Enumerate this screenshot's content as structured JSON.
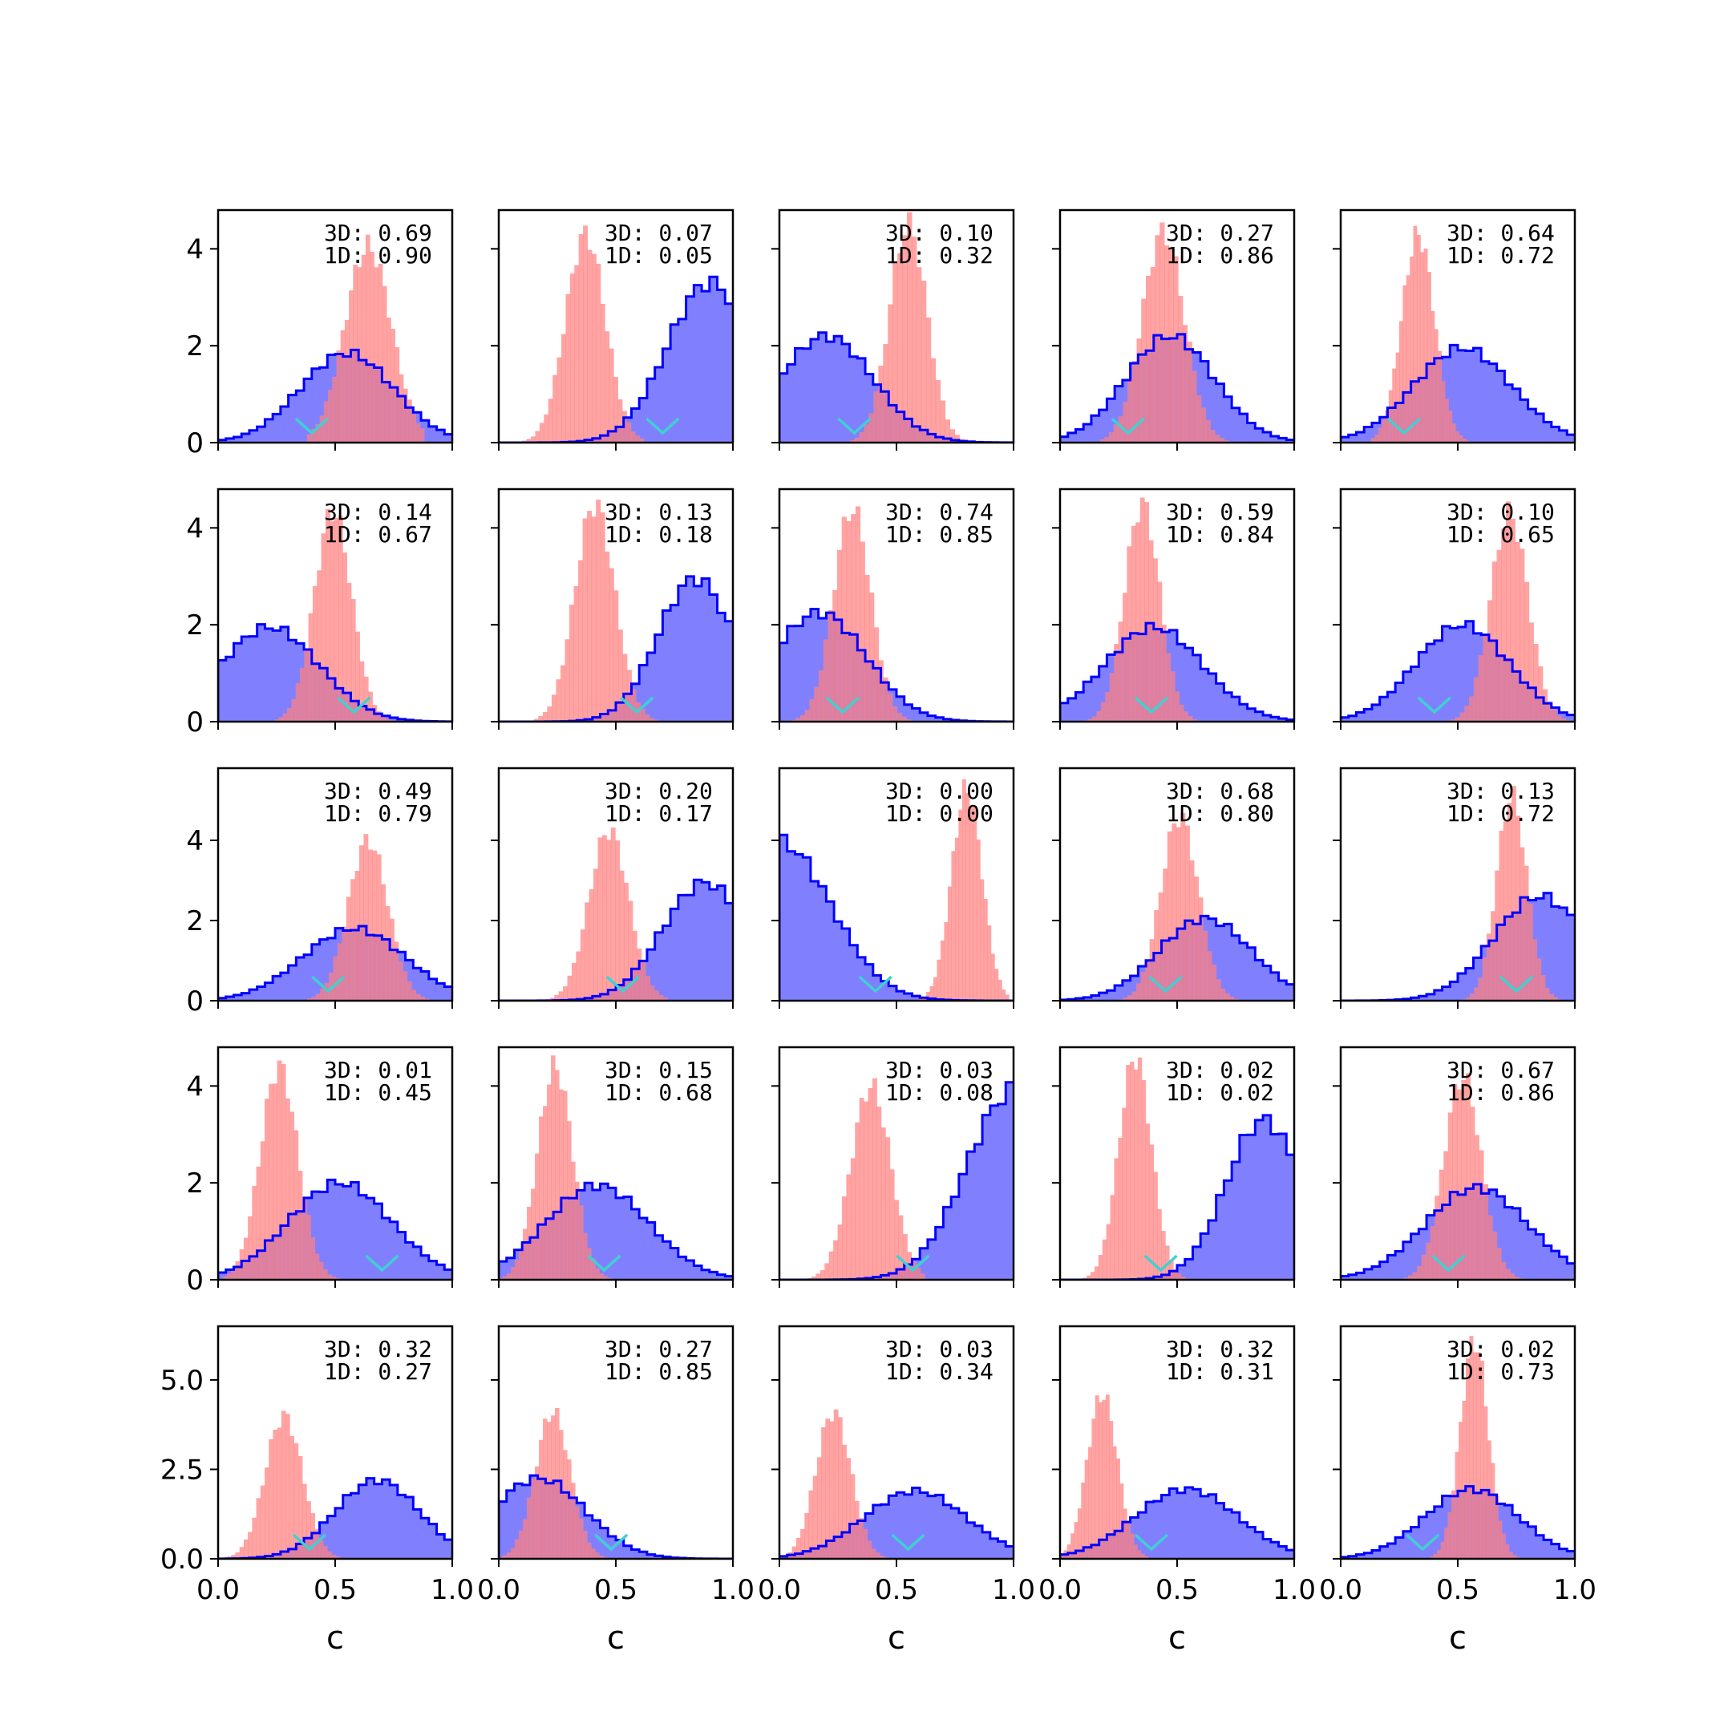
{
  "figure": {
    "xlabel": "c",
    "xticks": [
      "0.0",
      "0.5",
      "1.0"
    ],
    "row_yticks": [
      [
        {
          "v": 0,
          "t": "0"
        },
        {
          "v": 2,
          "t": "2"
        },
        {
          "v": 4,
          "t": "4"
        }
      ],
      [
        {
          "v": 0,
          "t": "0"
        },
        {
          "v": 2,
          "t": "2"
        },
        {
          "v": 4,
          "t": "4"
        }
      ],
      [
        {
          "v": 0,
          "t": "0"
        },
        {
          "v": 2,
          "t": "2"
        },
        {
          "v": 4,
          "t": "4"
        }
      ],
      [
        {
          "v": 0,
          "t": "0"
        },
        {
          "v": 2,
          "t": "2"
        },
        {
          "v": 4,
          "t": "4"
        }
      ],
      [
        {
          "v": 0,
          "t": "0.0"
        },
        {
          "v": 2.5,
          "t": "2.5"
        },
        {
          "v": 5,
          "t": "5.0"
        }
      ]
    ],
    "row_ylim": [
      [
        0,
        4.8
      ],
      [
        0,
        4.8
      ],
      [
        0,
        5.8
      ],
      [
        0,
        4.8
      ],
      [
        0,
        6.5
      ]
    ],
    "colors": {
      "prior": "#0000ff",
      "prior_fill": "#8080ff",
      "posterior": "#ff8080",
      "marker": "#40d0d0"
    }
  },
  "chart_data": [
    {
      "type": "histogram",
      "row": 0,
      "col": 0,
      "annot_3d": "3D: 0.69",
      "annot_1d": "1D: 0.90",
      "blue": {
        "mean": 0.55,
        "sd": 0.2,
        "peak": 1.85
      },
      "red": {
        "mean": 0.64,
        "sd": 0.1,
        "peak": 4.05,
        "lo": 0.38,
        "hi": 0.88
      },
      "marker_x": 0.4
    },
    {
      "type": "histogram",
      "row": 0,
      "col": 1,
      "annot_3d": "3D: 0.07",
      "annot_1d": "1D: 0.05",
      "blue": {
        "mean": 0.9,
        "sd": 0.18,
        "peak": 3.3
      },
      "red": {
        "mean": 0.37,
        "sd": 0.085,
        "peak": 4.3,
        "lo": 0.1,
        "hi": 0.62
      },
      "marker_x": 0.7
    },
    {
      "type": "histogram",
      "row": 0,
      "col": 2,
      "annot_3d": "3D: 0.10",
      "annot_1d": "1D: 0.32",
      "blue": {
        "mean": 0.2,
        "sd": 0.2,
        "peak": 2.2
      },
      "red": {
        "mean": 0.55,
        "sd": 0.08,
        "peak": 4.5,
        "lo": 0.28,
        "hi": 0.85
      },
      "marker_x": 0.32
    },
    {
      "type": "histogram",
      "row": 0,
      "col": 3,
      "annot_3d": "3D: 0.27",
      "annot_1d": "1D: 0.86",
      "blue": {
        "mean": 0.47,
        "sd": 0.19,
        "peak": 2.2
      },
      "red": {
        "mean": 0.44,
        "sd": 0.09,
        "peak": 4.35,
        "lo": 0.17,
        "hi": 0.72
      },
      "marker_x": 0.29
    },
    {
      "type": "histogram",
      "row": 0,
      "col": 4,
      "annot_3d": "3D: 0.64",
      "annot_1d": "1D: 0.72",
      "blue": {
        "mean": 0.52,
        "sd": 0.21,
        "peak": 1.95
      },
      "red": {
        "mean": 0.33,
        "sd": 0.07,
        "peak": 4.3,
        "lo": 0.13,
        "hi": 0.55
      },
      "marker_x": 0.27
    },
    {
      "type": "histogram",
      "row": 1,
      "col": 0,
      "annot_3d": "3D: 0.14",
      "annot_1d": "1D: 0.67",
      "blue": {
        "mean": 0.22,
        "sd": 0.21,
        "peak": 1.95
      },
      "red": {
        "mean": 0.49,
        "sd": 0.08,
        "peak": 4.35,
        "lo": 0.24,
        "hi": 0.75
      },
      "marker_x": 0.58
    },
    {
      "type": "histogram",
      "row": 1,
      "col": 1,
      "annot_3d": "3D: 0.13",
      "annot_1d": "1D: 0.18",
      "blue": {
        "mean": 0.84,
        "sd": 0.16,
        "peak": 2.95
      },
      "red": {
        "mean": 0.41,
        "sd": 0.085,
        "peak": 4.5,
        "lo": 0.15,
        "hi": 0.68
      },
      "marker_x": 0.59
    },
    {
      "type": "histogram",
      "row": 1,
      "col": 2,
      "annot_3d": "3D: 0.74",
      "annot_1d": "1D: 0.85",
      "blue": {
        "mean": 0.17,
        "sd": 0.2,
        "peak": 2.25
      },
      "red": {
        "mean": 0.31,
        "sd": 0.08,
        "peak": 4.4,
        "lo": 0.05,
        "hi": 0.6
      },
      "marker_x": 0.27
    },
    {
      "type": "histogram",
      "row": 1,
      "col": 3,
      "annot_3d": "3D: 0.59",
      "annot_1d": "1D: 0.84",
      "blue": {
        "mean": 0.4,
        "sd": 0.21,
        "peak": 1.95
      },
      "red": {
        "mean": 0.35,
        "sd": 0.075,
        "peak": 4.5,
        "lo": 0.1,
        "hi": 0.62
      },
      "marker_x": 0.39
    },
    {
      "type": "histogram",
      "row": 1,
      "col": 4,
      "annot_3d": "3D: 0.10",
      "annot_1d": "1D: 0.65",
      "blue": {
        "mean": 0.52,
        "sd": 0.2,
        "peak": 2.0
      },
      "red": {
        "mean": 0.72,
        "sd": 0.08,
        "peak": 4.3,
        "lo": 0.45,
        "hi": 1.0
      },
      "marker_x": 0.4
    },
    {
      "type": "histogram",
      "row": 2,
      "col": 0,
      "annot_3d": "3D: 0.49",
      "annot_1d": "1D: 0.79",
      "blue": {
        "mean": 0.58,
        "sd": 0.22,
        "peak": 1.8
      },
      "red": {
        "mean": 0.64,
        "sd": 0.085,
        "peak": 4.0,
        "lo": 0.38,
        "hi": 0.9
      },
      "marker_x": 0.47
    },
    {
      "type": "histogram",
      "row": 2,
      "col": 1,
      "annot_3d": "3D: 0.20",
      "annot_1d": "1D: 0.17",
      "blue": {
        "mean": 0.88,
        "sd": 0.18,
        "peak": 2.95
      },
      "red": {
        "mean": 0.47,
        "sd": 0.085,
        "peak": 4.25,
        "lo": 0.2,
        "hi": 0.72
      },
      "marker_x": 0.53
    },
    {
      "type": "histogram",
      "row": 2,
      "col": 2,
      "annot_3d": "3D: 0.00",
      "annot_1d": "1D: 0.00",
      "blue": {
        "mean": 0.0,
        "sd": 0.22,
        "peak": 3.95
      },
      "red": {
        "mean": 0.8,
        "sd": 0.065,
        "peak": 5.3,
        "lo": 0.55,
        "hi": 0.98
      },
      "marker_x": 0.41
    },
    {
      "type": "histogram",
      "row": 2,
      "col": 3,
      "annot_3d": "3D: 0.68",
      "annot_1d": "1D: 0.80",
      "blue": {
        "mean": 0.62,
        "sd": 0.2,
        "peak": 2.05
      },
      "red": {
        "mean": 0.51,
        "sd": 0.08,
        "peak": 4.6,
        "lo": 0.25,
        "hi": 0.78
      },
      "marker_x": 0.45
    },
    {
      "type": "histogram",
      "row": 2,
      "col": 4,
      "annot_3d": "3D: 0.13",
      "annot_1d": "1D: 0.72",
      "blue": {
        "mean": 0.85,
        "sd": 0.2,
        "peak": 2.6
      },
      "red": {
        "mean": 0.73,
        "sd": 0.065,
        "peak": 5.1,
        "lo": 0.48,
        "hi": 0.98
      },
      "marker_x": 0.75
    },
    {
      "type": "histogram",
      "row": 3,
      "col": 0,
      "annot_3d": "3D: 0.01",
      "annot_1d": "1D: 0.45",
      "blue": {
        "mean": 0.52,
        "sd": 0.22,
        "peak": 2.0
      },
      "red": {
        "mean": 0.26,
        "sd": 0.08,
        "peak": 4.4,
        "lo": 0.02,
        "hi": 0.52
      },
      "marker_x": 0.7
    },
    {
      "type": "histogram",
      "row": 3,
      "col": 1,
      "annot_3d": "3D: 0.15",
      "annot_1d": "1D: 0.68",
      "blue": {
        "mean": 0.42,
        "sd": 0.22,
        "peak": 1.95
      },
      "red": {
        "mean": 0.24,
        "sd": 0.075,
        "peak": 4.4,
        "lo": 0.0,
        "hi": 0.48
      },
      "marker_x": 0.45
    },
    {
      "type": "histogram",
      "row": 3,
      "col": 2,
      "annot_3d": "3D: 0.03",
      "annot_1d": "1D: 0.08",
      "blue": {
        "mean": 1.0,
        "sd": 0.2,
        "peak": 3.9
      },
      "red": {
        "mean": 0.39,
        "sd": 0.085,
        "peak": 4.0,
        "lo": 0.1,
        "hi": 0.62
      },
      "marker_x": 0.57
    },
    {
      "type": "histogram",
      "row": 3,
      "col": 3,
      "annot_3d": "3D: 0.02",
      "annot_1d": "1D: 0.02",
      "blue": {
        "mean": 0.87,
        "sd": 0.16,
        "peak": 3.3
      },
      "red": {
        "mean": 0.32,
        "sd": 0.07,
        "peak": 4.6,
        "lo": 0.08,
        "hi": 0.55
      },
      "marker_x": 0.43
    },
    {
      "type": "histogram",
      "row": 3,
      "col": 4,
      "annot_3d": "3D: 0.67",
      "annot_1d": "1D: 0.86",
      "blue": {
        "mean": 0.58,
        "sd": 0.22,
        "peak": 1.9
      },
      "red": {
        "mean": 0.52,
        "sd": 0.08,
        "peak": 4.2,
        "lo": 0.25,
        "hi": 0.78
      },
      "marker_x": 0.46
    },
    {
      "type": "histogram",
      "row": 4,
      "col": 0,
      "annot_3d": "3D: 0.32",
      "annot_1d": "1D: 0.27",
      "blue": {
        "mean": 0.68,
        "sd": 0.18,
        "peak": 2.2
      },
      "red": {
        "mean": 0.28,
        "sd": 0.08,
        "peak": 4.0,
        "lo": 0.02,
        "hi": 0.52
      },
      "marker_x": 0.39
    },
    {
      "type": "histogram",
      "row": 4,
      "col": 1,
      "annot_3d": "3D: 0.27",
      "annot_1d": "1D: 0.85",
      "blue": {
        "mean": 0.17,
        "sd": 0.2,
        "peak": 2.25
      },
      "red": {
        "mean": 0.23,
        "sd": 0.075,
        "peak": 4.1,
        "lo": 0.0,
        "hi": 0.48
      },
      "marker_x": 0.48
    },
    {
      "type": "histogram",
      "row": 4,
      "col": 2,
      "annot_3d": "3D: 0.03",
      "annot_1d": "1D: 0.34",
      "blue": {
        "mean": 0.58,
        "sd": 0.22,
        "peak": 1.9
      },
      "red": {
        "mean": 0.23,
        "sd": 0.075,
        "peak": 4.1,
        "lo": 0.0,
        "hi": 0.5
      },
      "marker_x": 0.55
    },
    {
      "type": "histogram",
      "row": 4,
      "col": 3,
      "annot_3d": "3D: 0.32",
      "annot_1d": "1D: 0.31",
      "blue": {
        "mean": 0.54,
        "sd": 0.22,
        "peak": 1.95
      },
      "red": {
        "mean": 0.18,
        "sd": 0.065,
        "peak": 4.6,
        "lo": 0.0,
        "hi": 0.42
      },
      "marker_x": 0.39
    },
    {
      "type": "histogram",
      "row": 4,
      "col": 4,
      "annot_3d": "3D: 0.02",
      "annot_1d": "1D: 0.73",
      "blue": {
        "mean": 0.56,
        "sd": 0.2,
        "peak": 1.95
      },
      "red": {
        "mean": 0.57,
        "sd": 0.06,
        "peak": 6.1,
        "lo": 0.35,
        "hi": 0.78
      },
      "marker_x": 0.35
    }
  ]
}
